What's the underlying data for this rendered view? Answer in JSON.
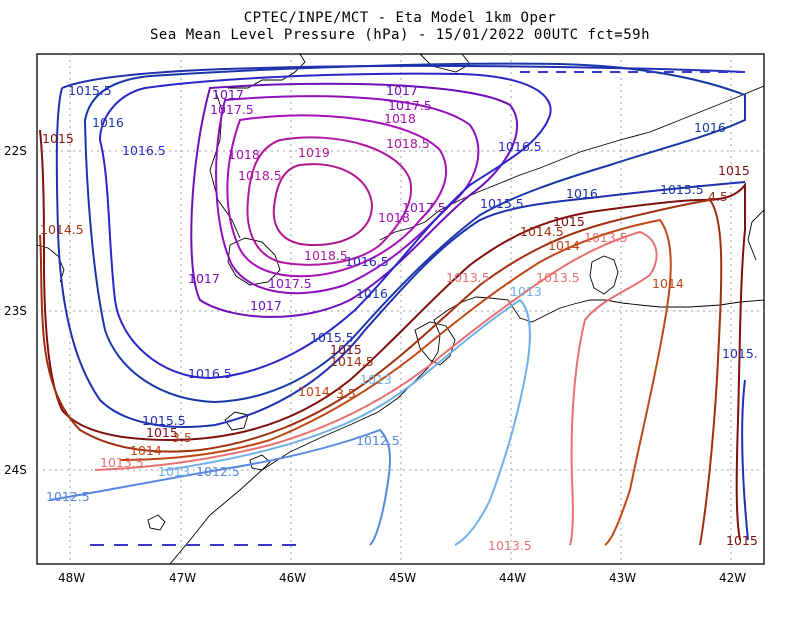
{
  "title": {
    "line1": "CPTEC/INPE/MCT -  Eta Model 1km Oper",
    "line2": "Sea Mean Level Pressure (hPa) - 15/01/2022 00UTC fct=59h"
  },
  "axes": {
    "x_ticks": [
      "48W",
      "47W",
      "46W",
      "45W",
      "44W",
      "43W",
      "42W"
    ],
    "y_ticks": [
      "22S",
      "23S",
      "24S"
    ]
  },
  "contour_labels": [
    {
      "text": "1015.5",
      "color": "#2030b0"
    },
    {
      "text": "1016",
      "color": "#1838a8"
    },
    {
      "text": "1016.5",
      "color": "#2828c8"
    },
    {
      "text": "1017",
      "color": "#7010b8"
    },
    {
      "text": "1017.5",
      "color": "#9010c0"
    },
    {
      "text": "1018",
      "color": "#a810b8"
    },
    {
      "text": "1018.5",
      "color": "#b018a0"
    },
    {
      "text": "1019",
      "color": "#b01890"
    },
    {
      "text": "1015",
      "color": "#801010"
    },
    {
      "text": "1014.5",
      "color": "#a03010"
    },
    {
      "text": "1014",
      "color": "#c04818"
    },
    {
      "text": "1013.5",
      "color": "#e87070"
    },
    {
      "text": "1013",
      "color": "#70b0e8"
    },
    {
      "text": "1012.5",
      "color": "#5888e0"
    },
    {
      "text": "1015.",
      "color": "#2030b0"
    },
    {
      "text": "4.5",
      "color": "#a03010"
    },
    {
      "text": "3.5",
      "color": "#c04818"
    },
    {
      "text": "1015.5",
      "color": "#1838a8"
    },
    {
      "text": "1013",
      "color": "#70b0e8"
    }
  ]
}
